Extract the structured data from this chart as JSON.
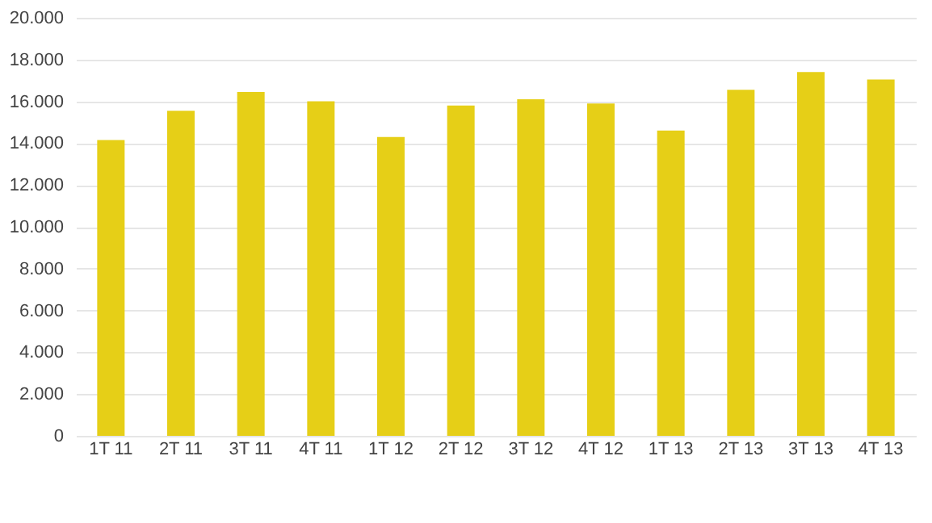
{
  "chart_data": {
    "type": "bar",
    "categories": [
      "1T 11",
      "2T 11",
      "3T 11",
      "4T 11",
      "1T 12",
      "2T 12",
      "3T 12",
      "4T 12",
      "1T 13",
      "2T 13",
      "3T 13",
      "4T 13"
    ],
    "values": [
      14150,
      15550,
      16450,
      16000,
      14300,
      15800,
      16100,
      15900,
      14600,
      16550,
      17400,
      17050
    ],
    "color": "#e6cf17",
    "ylim": [
      0,
      20000
    ],
    "yticks": [
      {
        "value": 0,
        "label": "0"
      },
      {
        "value": 2000,
        "label": "2.000"
      },
      {
        "value": 4000,
        "label": "4.000"
      },
      {
        "value": 6000,
        "label": "6.000"
      },
      {
        "value": 8000,
        "label": "8.000"
      },
      {
        "value": 10000,
        "label": "10.000"
      },
      {
        "value": 12000,
        "label": "12.000"
      },
      {
        "value": 14000,
        "label": "14.000"
      },
      {
        "value": 16000,
        "label": "16.000"
      },
      {
        "value": 18000,
        "label": "18.000"
      },
      {
        "value": 20000,
        "label": "20.000"
      }
    ],
    "grid": "y"
  }
}
